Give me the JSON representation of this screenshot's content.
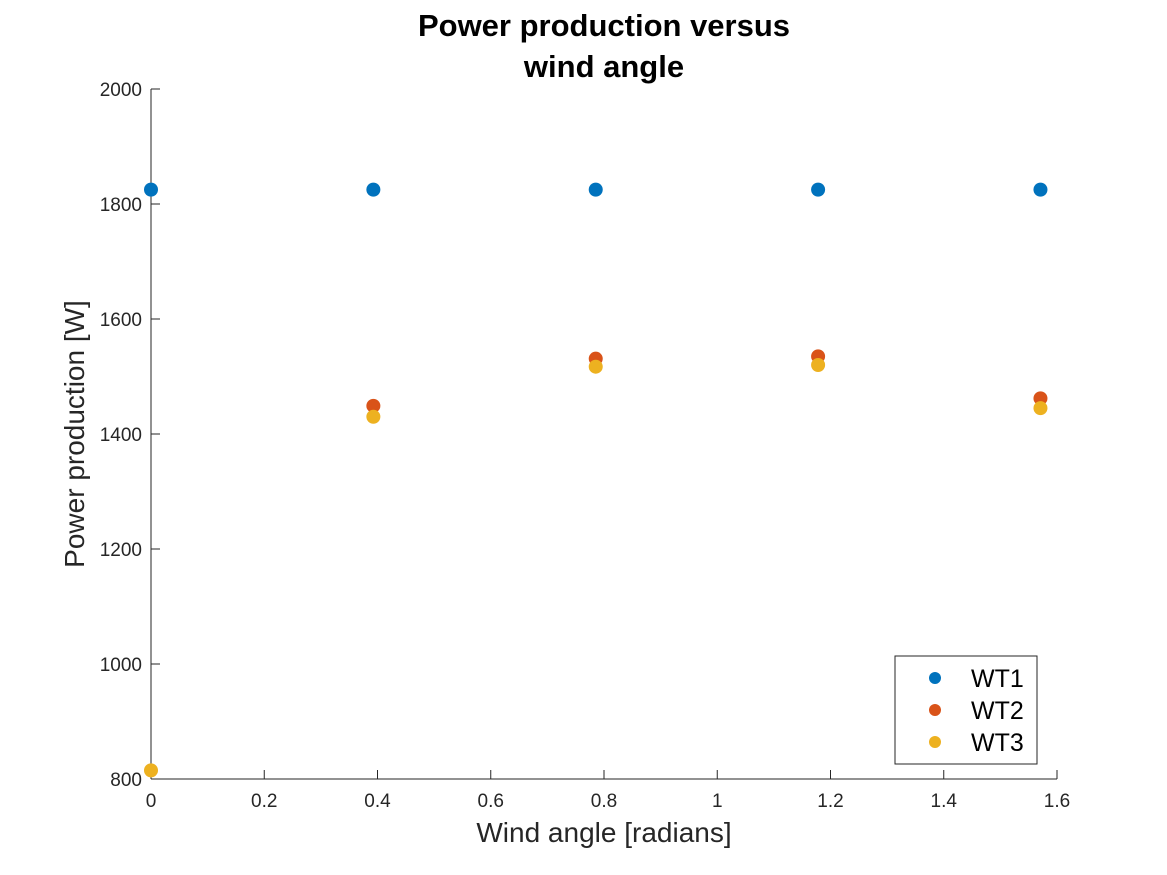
{
  "chart_data": {
    "type": "scatter",
    "title_lines": [
      "Power production versus",
      "wind angle"
    ],
    "xlabel": "Wind angle [radians]",
    "ylabel": "Power production [W]",
    "xlim": [
      0,
      1.6
    ],
    "ylim": [
      800,
      2000
    ],
    "xticks": [
      0,
      0.2,
      0.4,
      0.6,
      0.8,
      1,
      1.2,
      1.4,
      1.6
    ],
    "xtick_labels": [
      "0",
      "0.2",
      "0.4",
      "0.6",
      "0.8",
      "1",
      "1.2",
      "1.4",
      "1.6"
    ],
    "yticks": [
      800,
      1000,
      1200,
      1400,
      1600,
      1800,
      2000
    ],
    "ytick_labels": [
      "800",
      "1000",
      "1200",
      "1400",
      "1600",
      "1800",
      "2000"
    ],
    "grid": false,
    "legend_position": "bottom-right",
    "x": [
      0,
      0.3927,
      0.7854,
      1.1781,
      1.5708
    ],
    "series": [
      {
        "name": "WT1",
        "color": "#0072BD",
        "values": [
          1825,
          1825,
          1825,
          1825,
          1825
        ]
      },
      {
        "name": "WT2",
        "color": "#D95319",
        "values": [
          null,
          1449,
          1531,
          1535,
          1462
        ]
      },
      {
        "name": "WT3",
        "color": "#EDB120",
        "values": [
          815,
          1430,
          1517,
          1520,
          1445
        ]
      }
    ]
  }
}
